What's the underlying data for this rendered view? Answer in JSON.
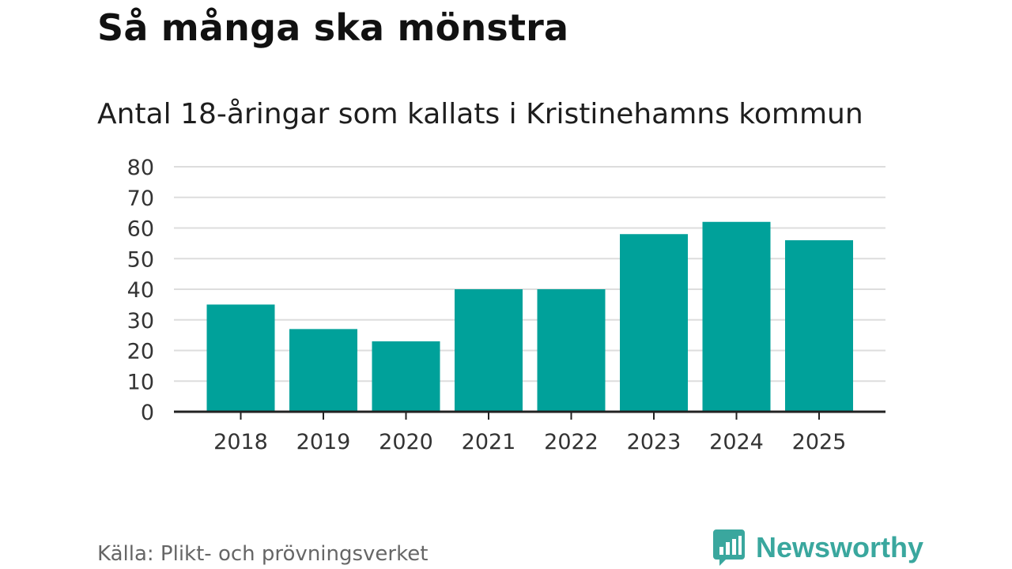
{
  "title": "Så många ska mönstra",
  "subtitle": "Antal 18-åringar som kallats i Kristinehamns kommun",
  "source": "Källa: Plikt- och prövningsverket",
  "brand": {
    "name": "Newsworthy",
    "icon": "newsworthy-logo-icon"
  },
  "colors": {
    "bar": "#00a19a",
    "grid": "#dddddd",
    "axis": "#222222",
    "brand": "#3aa79e"
  },
  "chart_data": {
    "type": "bar",
    "categories": [
      "2018",
      "2019",
      "2020",
      "2021",
      "2022",
      "2023",
      "2024",
      "2025"
    ],
    "values": [
      35,
      27,
      23,
      40,
      40,
      58,
      62,
      56
    ],
    "ylim": [
      0,
      80
    ],
    "yticks": [
      0,
      10,
      20,
      30,
      40,
      50,
      60,
      70,
      80
    ],
    "grid": true,
    "legend": "none"
  }
}
